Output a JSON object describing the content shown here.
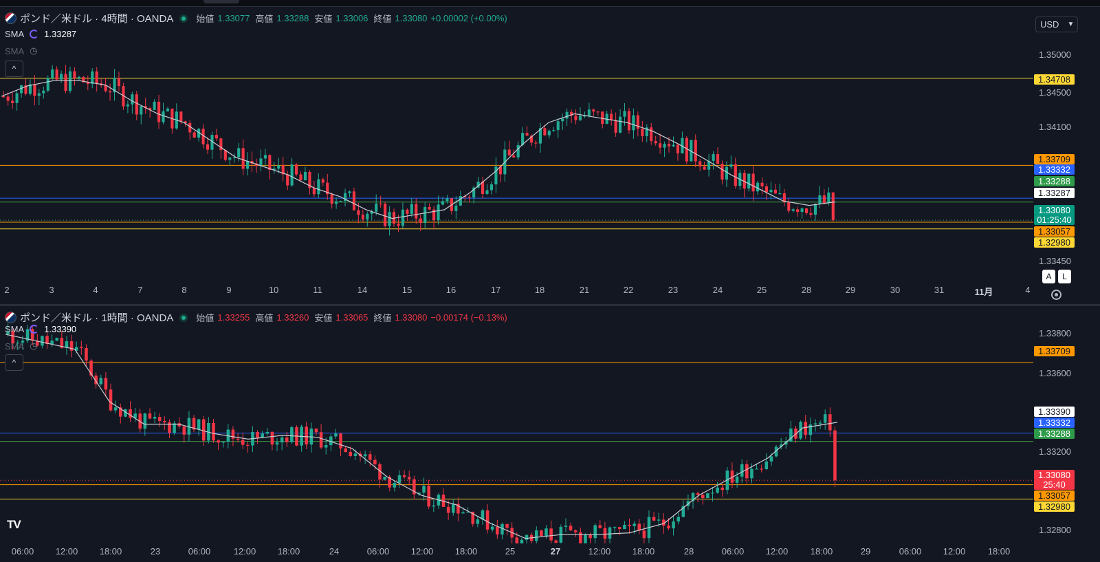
{
  "colors": {
    "up": "#22ab94",
    "down": "#f23645",
    "sma": "#c9ccd3",
    "yellow": "#fdd835",
    "orange": "#ff9800",
    "blue": "#2962ff",
    "green": "#43a047"
  },
  "currency": "USD",
  "pane1": {
    "symbol_title": "ポンド／米ドル · 4時間 · OANDA",
    "ohlc": {
      "open_label": "始値",
      "open": "1.33077",
      "high_label": "高値",
      "high": "1.33288",
      "low_label": "安値",
      "low": "1.33006",
      "close_label": "終値",
      "close": "1.33080",
      "change": "+0.00002 (+0.00%)"
    },
    "indicators": [
      {
        "name": "SMA",
        "value": "1.33287"
      },
      {
        "name": "SMA",
        "value": ""
      }
    ],
    "collapse_icon": "chevron-up-icon",
    "price_ticks": [
      "1.35000",
      "1.34500",
      "1.34100",
      "1.33450"
    ],
    "price_labels": [
      {
        "text": "1.34708",
        "bg": "#fdd835",
        "fg": "#131722"
      },
      {
        "text": "1.33709",
        "bg": "#ff9800",
        "fg": "#131722"
      },
      {
        "text": "1.33332",
        "bg": "#2962ff",
        "fg": "#ffffff"
      },
      {
        "text": "1.33288",
        "bg": "#2e9b4a",
        "fg": "#ffffff"
      },
      {
        "text": "1.33287",
        "bg": "#ffffff",
        "fg": "#131722"
      },
      {
        "text": "1.33080",
        "bg": "#089981",
        "fg": "#ffffff"
      },
      {
        "text": "01:25:40",
        "bg": "#089981",
        "fg": "#ffffff"
      },
      {
        "text": "1.33057",
        "bg": "#ff9800",
        "fg": "#131722"
      },
      {
        "text": "1.32980",
        "bg": "#fdd835",
        "fg": "#131722"
      }
    ],
    "time_ticks": [
      {
        "t": "2"
      },
      {
        "t": "3"
      },
      {
        "t": "4"
      },
      {
        "t": "7"
      },
      {
        "t": "8"
      },
      {
        "t": "9"
      },
      {
        "t": "10"
      },
      {
        "t": "11"
      },
      {
        "t": "14"
      },
      {
        "t": "15"
      },
      {
        "t": "16"
      },
      {
        "t": "17"
      },
      {
        "t": "18"
      },
      {
        "t": "21"
      },
      {
        "t": "22"
      },
      {
        "t": "23"
      },
      {
        "t": "24"
      },
      {
        "t": "25"
      },
      {
        "t": "28"
      },
      {
        "t": "29"
      },
      {
        "t": "30"
      },
      {
        "t": "31"
      },
      {
        "t": "11月",
        "bold": true
      },
      {
        "t": "4"
      }
    ],
    "scale_buttons": [
      "A",
      "L"
    ]
  },
  "pane2": {
    "symbol_title": "ポンド／米ドル · 1時間 · OANDA",
    "ohlc": {
      "open_label": "始値",
      "open": "1.33255",
      "high_label": "高値",
      "high": "1.33260",
      "low_label": "安値",
      "low": "1.33065",
      "close_label": "終値",
      "close": "1.33080",
      "change": "−0.00174 (−0.13%)"
    },
    "indicators": [
      {
        "name": "SMA",
        "value": "1.33390"
      },
      {
        "name": "SMA",
        "value": ""
      }
    ],
    "collapse_icon": "chevron-up-icon",
    "price_ticks": [
      "1.33800",
      "1.33600",
      "1.33200",
      "1.32800"
    ],
    "price_labels": [
      {
        "text": "1.33709",
        "bg": "#ff9800",
        "fg": "#131722"
      },
      {
        "text": "1.33390",
        "bg": "#ffffff",
        "fg": "#131722"
      },
      {
        "text": "1.33332",
        "bg": "#2962ff",
        "fg": "#ffffff"
      },
      {
        "text": "1.33288",
        "bg": "#2e9b4a",
        "fg": "#ffffff"
      },
      {
        "text": "1.33080",
        "bg": "#f23645",
        "fg": "#ffffff"
      },
      {
        "text": "25:40",
        "bg": "#f23645",
        "fg": "#ffffff"
      },
      {
        "text": "1.33057",
        "bg": "#ff9800",
        "fg": "#131722"
      },
      {
        "text": "1.32980",
        "bg": "#fdd835",
        "fg": "#131722"
      }
    ],
    "time_ticks": [
      {
        "t": "06:00"
      },
      {
        "t": "12:00"
      },
      {
        "t": "18:00"
      },
      {
        "t": "23"
      },
      {
        "t": "06:00"
      },
      {
        "t": "12:00"
      },
      {
        "t": "18:00"
      },
      {
        "t": "24"
      },
      {
        "t": "06:00"
      },
      {
        "t": "12:00"
      },
      {
        "t": "18:00"
      },
      {
        "t": "25"
      },
      {
        "t": "27",
        "bold": true
      },
      {
        "t": "12:00"
      },
      {
        "t": "18:00"
      },
      {
        "t": "28"
      },
      {
        "t": "06:00"
      },
      {
        "t": "12:00"
      },
      {
        "t": "18:00"
      },
      {
        "t": "29"
      },
      {
        "t": "06:00"
      },
      {
        "t": "12:00"
      },
      {
        "t": "18:00"
      }
    ],
    "logo": "TV"
  },
  "chart_data": [
    {
      "type": "line",
      "title": "ポンド／米ドル · 4時間 · OANDA",
      "ylim": [
        1.3245,
        1.3525
      ],
      "series": [
        {
          "name": "SMA",
          "values": [
            1.345,
            1.3462,
            1.3468,
            1.3468,
            1.3463,
            1.3445,
            1.343,
            1.342,
            1.34,
            1.338,
            1.337,
            1.336,
            1.3345,
            1.3335,
            1.332,
            1.331,
            1.3315,
            1.332,
            1.334,
            1.3365,
            1.3395,
            1.342,
            1.343,
            1.3425,
            1.342,
            1.341,
            1.3395,
            1.3378,
            1.336,
            1.3345,
            1.333,
            1.3325,
            1.3329
          ]
        }
      ],
      "horizontal_levels": [
        1.34708,
        1.33709,
        1.33332,
        1.33288,
        1.33057,
        1.3298
      ],
      "last_price": 1.3308
    },
    {
      "type": "line",
      "title": "ポンド／米ドル · 1時間 · OANDA",
      "ylim": [
        1.3278,
        1.339
      ],
      "series": [
        {
          "name": "SMA",
          "values": [
            1.3386,
            1.3382,
            1.3378,
            1.335,
            1.3338,
            1.3338,
            1.3333,
            1.333,
            1.3332,
            1.3331,
            1.3325,
            1.331,
            1.33,
            1.3295,
            1.3285,
            1.3277,
            1.3279,
            1.3279,
            1.328,
            1.3285,
            1.33,
            1.331,
            1.332,
            1.3336,
            1.3339
          ]
        }
      ],
      "horizontal_levels": [
        1.33709,
        1.33332,
        1.33288,
        1.33057,
        1.3298
      ],
      "last_price": 1.3308
    }
  ]
}
